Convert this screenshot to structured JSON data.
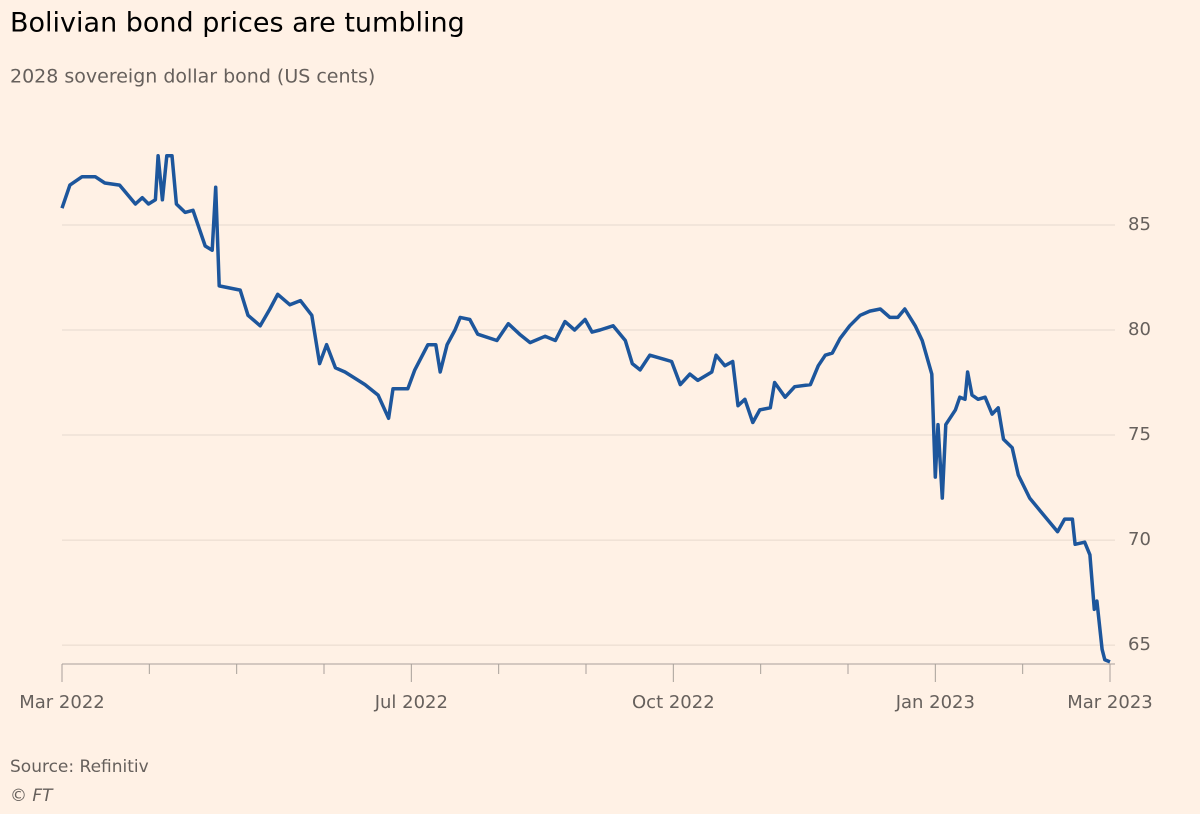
{
  "chart_data": {
    "type": "line",
    "title": "Bolivian bond prices are tumbling",
    "subtitle": "2028 sovereign dollar bond (US cents)",
    "source": "Source: Refinitiv",
    "copyright": "© FT",
    "xlim": [
      0,
      12
    ],
    "xticks": [
      {
        "value": 0,
        "label": "Mar 2022"
      },
      {
        "value": 4,
        "label": "Jul 2022"
      },
      {
        "value": 7,
        "label": "Oct 2022"
      },
      {
        "value": 10,
        "label": "Jan 2023"
      },
      {
        "value": 12,
        "label": "Mar 2023"
      }
    ],
    "minor_xticks": [
      1,
      2,
      3,
      5,
      6,
      8,
      9,
      11
    ],
    "ylim": [
      64.1,
      89
    ],
    "yticks": [
      65,
      70,
      75,
      80,
      85
    ],
    "grid": true,
    "series": [
      {
        "color": "#1d569c",
        "x": [
          0,
          0.09,
          0.23,
          0.38,
          0.49,
          0.66,
          0.76,
          0.84,
          0.92,
          0.99,
          1.07,
          1.1,
          1.15,
          1.2,
          1.26,
          1.31,
          1.41,
          1.5,
          1.64,
          1.72,
          1.76,
          1.8,
          2.04,
          2.13,
          2.27,
          2.38,
          2.47,
          2.61,
          2.73,
          2.86,
          2.95,
          3.03,
          3.13,
          3.24,
          3.47,
          3.62,
          3.74,
          3.79,
          3.96,
          4.04,
          4.19,
          4.28,
          4.33,
          4.41,
          4.5,
          4.56,
          4.67,
          4.76,
          4.98,
          5.11,
          5.24,
          5.36,
          5.53,
          5.65,
          5.76,
          5.87,
          5.99,
          6.07,
          6.16,
          6.31,
          6.45,
          6.53,
          6.62,
          6.73,
          6.9,
          6.98,
          7.08,
          7.19,
          7.28,
          7.44,
          7.49,
          7.59,
          7.68,
          7.74,
          7.82,
          7.91,
          7.99,
          8.11,
          8.16,
          8.28,
          8.39,
          8.57,
          8.66,
          8.74,
          8.82,
          8.91,
          9.02,
          9.14,
          9.25,
          9.37,
          9.48,
          9.57,
          9.65,
          9.77,
          9.85,
          9.96,
          10.0,
          10.03,
          10.08,
          10.12,
          10.23,
          10.28,
          10.34,
          10.37,
          10.42,
          10.49,
          10.57,
          10.65,
          10.72,
          10.78,
          10.88,
          10.95,
          11.08,
          11.2,
          11.4,
          11.48,
          11.57,
          11.6,
          11.71,
          11.77,
          11.82,
          11.85,
          11.91,
          11.94,
          12.0
        ],
        "values": [
          85.8,
          86.9,
          87.3,
          87.3,
          87.0,
          86.9,
          86.4,
          86.0,
          86.3,
          86.0,
          86.2,
          88.3,
          86.2,
          88.3,
          88.3,
          86.0,
          85.6,
          85.7,
          84.0,
          83.8,
          86.8,
          82.1,
          81.9,
          80.7,
          80.2,
          81.0,
          81.7,
          81.2,
          81.4,
          80.7,
          78.4,
          79.3,
          78.2,
          78.0,
          77.4,
          76.9,
          75.8,
          77.2,
          77.2,
          78.1,
          79.3,
          79.3,
          78.0,
          79.3,
          80.0,
          80.6,
          80.5,
          79.8,
          79.5,
          80.3,
          79.8,
          79.4,
          79.7,
          79.5,
          80.4,
          80.0,
          80.5,
          79.9,
          80.0,
          80.2,
          79.5,
          78.4,
          78.1,
          78.8,
          78.6,
          78.5,
          77.4,
          77.9,
          77.6,
          78.0,
          78.8,
          78.3,
          78.5,
          76.4,
          76.7,
          75.6,
          76.2,
          76.3,
          77.5,
          76.8,
          77.3,
          77.4,
          78.3,
          78.8,
          78.9,
          79.6,
          80.2,
          80.7,
          80.9,
          81.0,
          80.6,
          80.6,
          81.0,
          80.2,
          79.5,
          77.9,
          73.0,
          75.5,
          72.0,
          75.5,
          76.2,
          76.8,
          76.7,
          78.0,
          76.9,
          76.7,
          76.8,
          76.0,
          76.3,
          74.8,
          74.4,
          73.1,
          72.0,
          71.4,
          70.4,
          71.0,
          71.0,
          69.8,
          69.9,
          69.3,
          66.7,
          67.1,
          64.8,
          64.3,
          64.2
        ]
      }
    ]
  }
}
